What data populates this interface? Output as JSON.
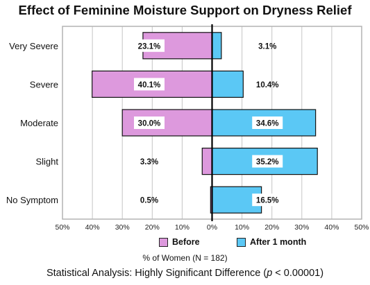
{
  "chart_data": {
    "type": "bar",
    "orientation": "horizontal-diverging",
    "title": "Effect of Feminine Moisture Support on Dryness Relief",
    "categories": [
      "Very Severe",
      "Severe",
      "Moderate",
      "Slight",
      "No Symptom"
    ],
    "series": [
      {
        "name": "Before",
        "values": [
          23.1,
          40.1,
          30.0,
          3.3,
          0.5
        ],
        "labels": [
          "23.1%",
          "40.1%",
          "30.0%",
          "3.3%",
          "0.5%"
        ],
        "color": "#dd99dd"
      },
      {
        "name": "After 1 month",
        "values": [
          3.1,
          10.4,
          34.6,
          35.2,
          16.5
        ],
        "labels": [
          "3.1%",
          "10.4%",
          "34.6%",
          "35.2%",
          "16.5%"
        ],
        "color": "#5bc8f5"
      }
    ],
    "xlabel": "% of Women (N = 182)",
    "xlim": [
      -50,
      50
    ],
    "xticks": [
      -50,
      -40,
      -30,
      -20,
      -10,
      0,
      10,
      20,
      30,
      40,
      50
    ],
    "xtick_labels": [
      "50%",
      "40%",
      "30%",
      "20%",
      "10%",
      "0%",
      "10%",
      "20%",
      "30%",
      "40%",
      "50%"
    ],
    "grid": "vertical",
    "legend_position": "bottom"
  },
  "footnote": {
    "prefix": "Statistical Analysis: Highly Significant Difference (",
    "p": "p",
    "suffix": " < 0.00001)"
  }
}
